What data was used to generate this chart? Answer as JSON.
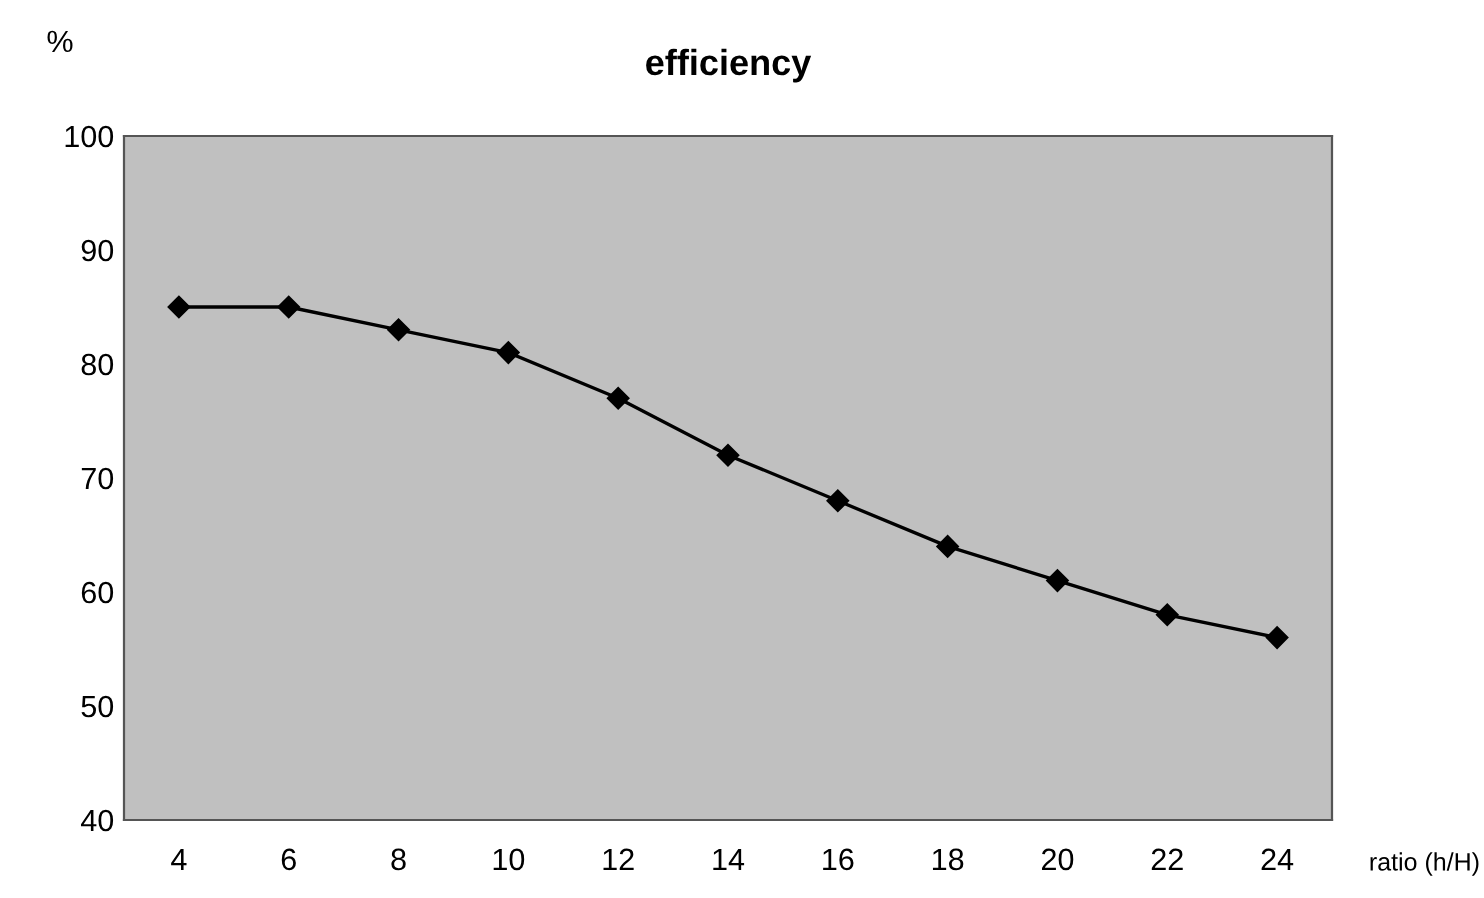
{
  "chart_data": {
    "type": "line",
    "title": "efficiency",
    "ylabel": "%",
    "xlabel": "ratio (h/H)",
    "categories": [
      "4",
      "6",
      "8",
      "10",
      "12",
      "14",
      "16",
      "18",
      "20",
      "22",
      "24"
    ],
    "series": [
      {
        "color": "#000000",
        "values": [
          85,
          85,
          83,
          81,
          77,
          72,
          68,
          64,
          61,
          58,
          56
        ]
      }
    ],
    "ylim": [
      40,
      100
    ],
    "yticks": [
      40,
      50,
      60,
      70,
      80,
      90,
      100
    ],
    "grid": false,
    "marker": "diamond",
    "line_style": "solid",
    "legend": false
  }
}
